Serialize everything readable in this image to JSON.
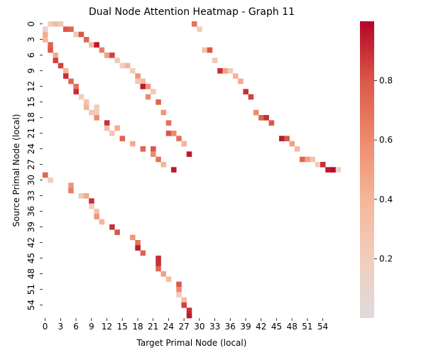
{
  "chart_data": {
    "type": "heatmap",
    "title": "Dual Node Attention Heatmap - Graph 11",
    "xlabel": "Target Primal Node (local)",
    "ylabel": "Source Primal Node (local)",
    "n_rows": 57,
    "n_cols": 58,
    "x_ticks": [
      "0",
      "3",
      "6",
      "9",
      "12",
      "15",
      "18",
      "21",
      "24",
      "27",
      "30",
      "33",
      "36",
      "39",
      "42",
      "45",
      "48",
      "51",
      "54"
    ],
    "y_ticks": [
      "0",
      "3",
      "6",
      "9",
      "12",
      "15",
      "18",
      "21",
      "24",
      "27",
      "30",
      "33",
      "36",
      "39",
      "42",
      "45",
      "48",
      "51",
      "54"
    ],
    "tick_step": 3,
    "colorbar": {
      "cmap": "coolwarm (upper half)",
      "vmin": 0.0,
      "vmax": 1.0,
      "ticks": [
        0.2,
        0.4,
        0.6,
        0.8
      ],
      "tick_labels": [
        "0.2",
        "0.4",
        "0.6",
        "0.8"
      ]
    },
    "cells": [
      [
        0,
        1,
        0.2
      ],
      [
        0,
        2,
        0.35
      ],
      [
        0,
        3,
        0.25
      ],
      [
        0,
        29,
        0.7
      ],
      [
        1,
        0,
        0.1
      ],
      [
        1,
        4,
        0.8
      ],
      [
        1,
        5,
        0.75
      ],
      [
        1,
        30,
        0.2
      ],
      [
        2,
        0,
        0.45
      ],
      [
        2,
        6,
        0.25
      ],
      [
        2,
        7,
        0.8
      ],
      [
        3,
        0,
        0.4
      ],
      [
        3,
        8,
        0.75
      ],
      [
        4,
        1,
        0.75
      ],
      [
        4,
        9,
        0.35
      ],
      [
        4,
        10,
        0.95
      ],
      [
        5,
        1,
        0.8
      ],
      [
        5,
        11,
        0.65
      ],
      [
        5,
        31,
        0.3
      ],
      [
        5,
        32,
        0.8
      ],
      [
        6,
        2,
        0.45
      ],
      [
        6,
        12,
        0.5
      ],
      [
        6,
        13,
        0.85
      ],
      [
        7,
        2,
        0.85
      ],
      [
        7,
        14,
        0.25
      ],
      [
        7,
        33,
        0.25
      ],
      [
        8,
        3,
        0.85
      ],
      [
        8,
        15,
        0.15
      ],
      [
        8,
        16,
        0.4
      ],
      [
        9,
        4,
        0.4
      ],
      [
        9,
        17,
        0.2
      ],
      [
        9,
        34,
        0.9
      ],
      [
        9,
        35,
        0.5
      ],
      [
        9,
        36,
        0.2
      ],
      [
        10,
        4,
        0.9
      ],
      [
        10,
        18,
        0.55
      ],
      [
        10,
        37,
        0.4
      ],
      [
        11,
        5,
        0.75
      ],
      [
        11,
        18,
        0.25
      ],
      [
        11,
        19,
        0.35
      ],
      [
        11,
        38,
        0.45
      ],
      [
        12,
        6,
        0.7
      ],
      [
        12,
        19,
        0.95
      ],
      [
        12,
        20,
        0.55
      ],
      [
        13,
        6,
        0.9
      ],
      [
        13,
        21,
        0.25
      ],
      [
        13,
        39,
        0.9
      ],
      [
        14,
        7,
        0.2
      ],
      [
        14,
        20,
        0.6
      ],
      [
        14,
        40,
        0.85
      ],
      [
        15,
        8,
        0.3
      ],
      [
        15,
        22,
        0.75
      ],
      [
        16,
        8,
        0.4
      ],
      [
        16,
        10,
        0.2
      ],
      [
        17,
        9,
        0.25
      ],
      [
        17,
        10,
        0.2
      ],
      [
        17,
        23,
        0.55
      ],
      [
        17,
        41,
        0.6
      ],
      [
        18,
        10,
        0.6
      ],
      [
        18,
        42,
        0.75
      ],
      [
        18,
        43,
        0.9
      ],
      [
        19,
        12,
        0.9
      ],
      [
        19,
        24,
        0.7
      ],
      [
        19,
        44,
        0.8
      ],
      [
        20,
        12,
        0.35
      ],
      [
        20,
        14,
        0.45
      ],
      [
        21,
        13,
        0.25
      ],
      [
        21,
        24,
        0.8
      ],
      [
        21,
        25,
        0.6
      ],
      [
        22,
        15,
        0.75
      ],
      [
        22,
        26,
        0.7
      ],
      [
        22,
        46,
        0.95
      ],
      [
        22,
        47,
        0.8
      ],
      [
        23,
        17,
        0.45
      ],
      [
        23,
        27,
        0.4
      ],
      [
        23,
        48,
        0.5
      ],
      [
        24,
        19,
        0.75
      ],
      [
        24,
        21,
        0.8
      ],
      [
        24,
        49,
        0.35
      ],
      [
        25,
        21,
        0.6
      ],
      [
        25,
        28,
        0.95
      ],
      [
        26,
        22,
        0.7
      ],
      [
        26,
        50,
        0.75
      ],
      [
        26,
        51,
        0.5
      ],
      [
        26,
        52,
        0.3
      ],
      [
        27,
        23,
        0.4
      ],
      [
        27,
        53,
        0.2
      ],
      [
        27,
        54,
        0.9
      ],
      [
        28,
        25,
        0.95
      ],
      [
        28,
        55,
        0.95
      ],
      [
        28,
        56,
        0.98
      ],
      [
        28,
        57,
        0.15
      ],
      [
        29,
        0,
        0.75
      ],
      [
        30,
        1,
        0.2
      ],
      [
        31,
        5,
        0.55
      ],
      [
        32,
        5,
        0.65
      ],
      [
        33,
        7,
        0.25
      ],
      [
        33,
        8,
        0.45
      ],
      [
        34,
        9,
        0.9
      ],
      [
        35,
        9,
        0.2
      ],
      [
        36,
        10,
        0.3
      ],
      [
        37,
        10,
        0.55
      ],
      [
        38,
        11,
        0.4
      ],
      [
        39,
        13,
        0.9
      ],
      [
        40,
        14,
        0.8
      ],
      [
        41,
        17,
        0.55
      ],
      [
        42,
        18,
        0.7
      ],
      [
        43,
        18,
        0.95
      ],
      [
        44,
        19,
        0.75
      ],
      [
        45,
        22,
        0.9
      ],
      [
        46,
        22,
        0.9
      ],
      [
        47,
        22,
        0.75
      ],
      [
        48,
        23,
        0.5
      ],
      [
        49,
        24,
        0.35
      ],
      [
        50,
        26,
        0.8
      ],
      [
        51,
        26,
        0.6
      ],
      [
        52,
        26,
        0.2
      ],
      [
        53,
        27,
        0.35
      ],
      [
        54,
        27,
        0.85
      ],
      [
        55,
        28,
        0.9
      ],
      [
        56,
        28,
        0.95
      ]
    ]
  }
}
